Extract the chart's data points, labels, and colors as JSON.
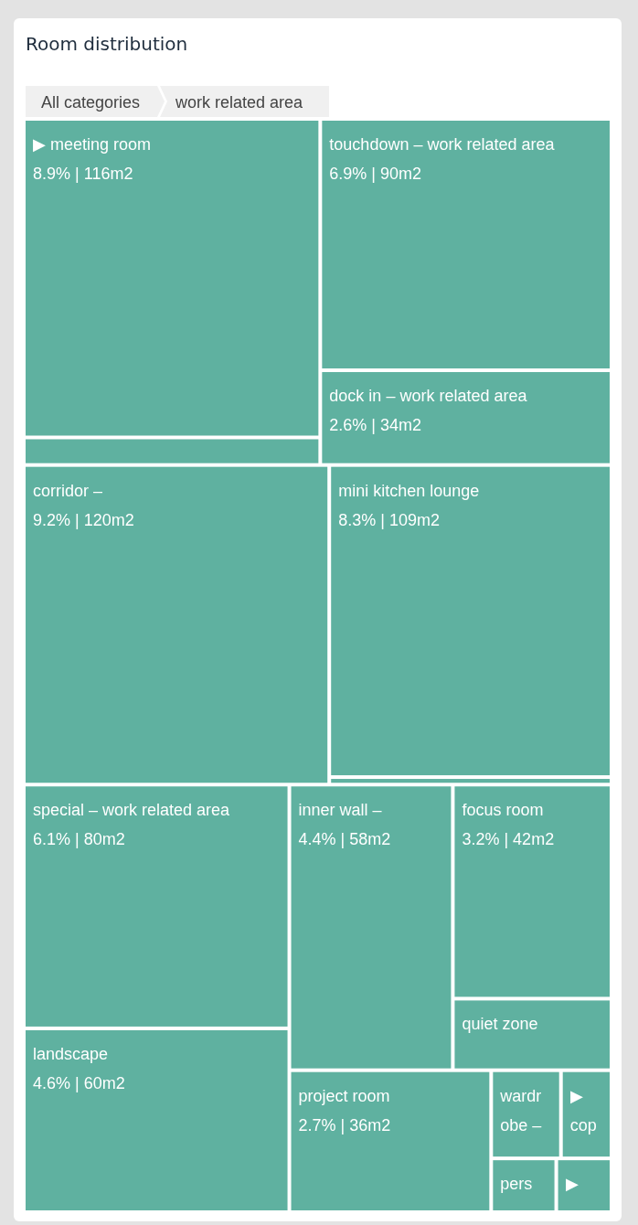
{
  "chart_data": {
    "type": "other",
    "title": "Room distribution",
    "annotations": [
      "All categories",
      "work related area"
    ],
    "color": "#5fb1a0",
    "categories": [
      "▶ meeting room",
      null,
      "touchdown – work related area",
      "dock in – work related area",
      "corridor –",
      "mini kitchen lounge",
      null,
      "special – work related area",
      "landscape",
      "inner wall –",
      "focus room",
      "quiet zone",
      "project room",
      "wardrobe –",
      "▶ cop",
      "pers",
      "▶"
    ],
    "values": [
      8.9,
      null,
      6.9,
      2.6,
      9.2,
      8.3,
      null,
      6.1,
      4.6,
      4.4,
      3.2,
      null,
      2.7,
      null,
      null,
      null,
      null
    ],
    "value_labels": [
      "8.9% | 116m2",
      null,
      "6.9% | 90m2",
      "2.6% | 34m2",
      "9.2% | 120m2",
      "8.3% | 109m2",
      null,
      "6.1% | 80m2",
      "4.6% | 60m2",
      "4.4% | 58m2",
      "3.2% | 42m2",
      null,
      "2.7% | 36m2",
      null,
      null,
      null,
      null
    ]
  }
}
